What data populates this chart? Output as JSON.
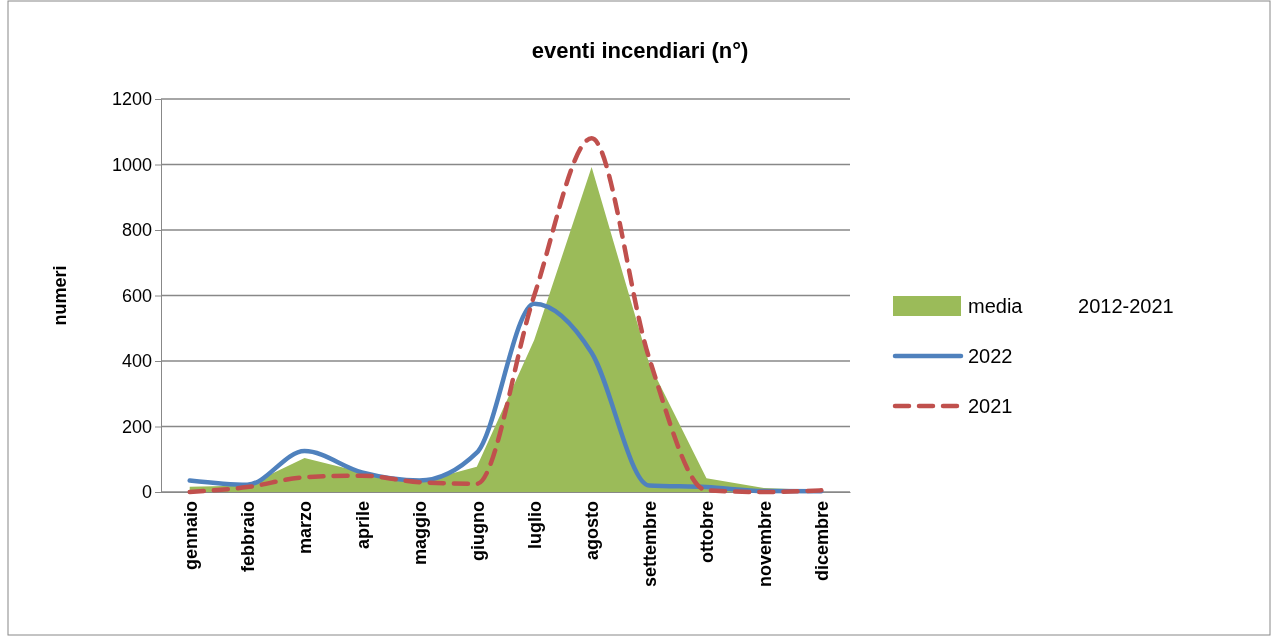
{
  "chart_data": {
    "type": "line",
    "title": "eventi incendiari (n°)",
    "ylabel": "numeri",
    "categories": [
      "gennaio",
      "febbraio",
      "marzo",
      "aprile",
      "maggio",
      "giugno",
      "luglio",
      "agosto",
      "settembre",
      "ottobre",
      "novembre",
      "dicembre"
    ],
    "series": [
      {
        "name": "media          2012-2021",
        "type": "area",
        "color": "#9bbb59",
        "values": [
          16,
          20,
          104,
          60,
          30,
          77,
          464,
          992,
          394,
          42,
          12,
          5
        ]
      },
      {
        "name": "2022",
        "color": "#4f81bd",
        "line_style": "solid",
        "values": [
          35,
          22,
          125,
          60,
          35,
          120,
          575,
          425,
          20,
          15,
          3,
          2
        ]
      },
      {
        "name": "2021",
        "color": "#c0504d",
        "line_style": "dashed",
        "values": [
          0,
          15,
          45,
          50,
          30,
          25,
          600,
          1080,
          410,
          5,
          0,
          5
        ]
      }
    ],
    "ylim": [
      0,
      1200
    ],
    "yticks": [
      0,
      200,
      400,
      600,
      800,
      1000,
      1200
    ],
    "grid": "y",
    "legend": "right",
    "marker": "none"
  }
}
